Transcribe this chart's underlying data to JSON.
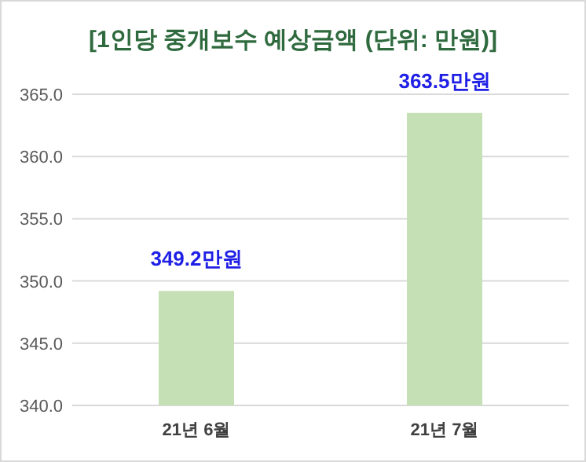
{
  "chart_data": {
    "type": "bar",
    "title": "[1인당 중개보수 예상금액 (단위: 만원)]",
    "categories": [
      "21년 6월",
      "21년 7월"
    ],
    "values": [
      349.2,
      363.5
    ],
    "value_labels": [
      "349.2만원",
      "363.5만원"
    ],
    "color": "#c5e0b4",
    "ylim": [
      340,
      365
    ],
    "yticks": [
      {
        "value": 340,
        "label": "340.0"
      },
      {
        "value": 345,
        "label": "345.0"
      },
      {
        "value": 350,
        "label": "350.0"
      },
      {
        "value": 355,
        "label": "355.0"
      },
      {
        "value": 360,
        "label": "360.0"
      },
      {
        "value": 365,
        "label": "365.0"
      }
    ],
    "grid": "y"
  }
}
